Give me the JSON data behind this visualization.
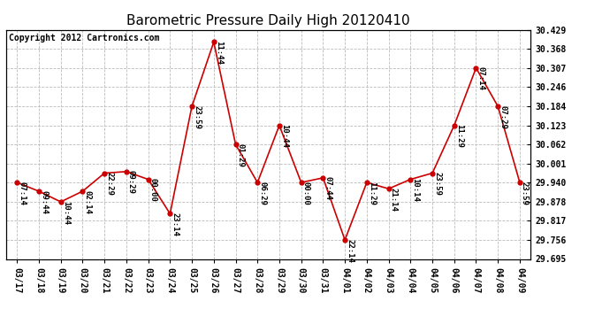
{
  "title": "Barometric Pressure Daily High 20120410",
  "copyright": "Copyright 2012 Cartronics.com",
  "x_labels": [
    "03/17",
    "03/18",
    "03/19",
    "03/20",
    "03/21",
    "03/22",
    "03/23",
    "03/24",
    "03/25",
    "03/26",
    "03/27",
    "03/28",
    "03/29",
    "03/30",
    "03/31",
    "04/01",
    "04/02",
    "04/03",
    "04/04",
    "04/05",
    "04/06",
    "04/07",
    "04/08",
    "04/09"
  ],
  "y_values": [
    29.94,
    29.912,
    29.878,
    29.912,
    29.97,
    29.975,
    29.95,
    29.84,
    30.184,
    30.39,
    30.062,
    29.94,
    30.123,
    29.94,
    29.955,
    29.756,
    29.94,
    29.92,
    29.95,
    29.97,
    30.123,
    30.307,
    30.184,
    29.94
  ],
  "point_labels": [
    "07:14",
    "09:44",
    "10:44",
    "02:14",
    "22:29",
    "09:29",
    "00:00",
    "23:14",
    "23:59",
    "11:44",
    "01:29",
    "06:29",
    "10:44",
    "00:00",
    "07:44",
    "22:14",
    "11:29",
    "21:14",
    "10:14",
    "23:59",
    "11:29",
    "07:14",
    "07:29",
    "23:59"
  ],
  "y_min": 29.695,
  "y_max": 30.429,
  "y_ticks": [
    29.695,
    29.756,
    29.817,
    29.878,
    29.94,
    30.001,
    30.062,
    30.123,
    30.184,
    30.246,
    30.307,
    30.368,
    30.429
  ],
  "line_color": "#cc0000",
  "marker_color": "#cc0000",
  "bg_color": "#ffffff",
  "grid_color": "#bbbbbb",
  "title_fontsize": 11,
  "label_fontsize": 7,
  "point_label_fontsize": 6.5,
  "copyright_fontsize": 7
}
